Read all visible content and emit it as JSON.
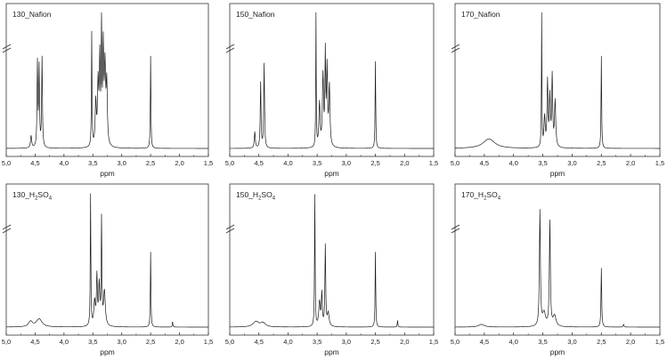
{
  "chart_data": [
    {
      "type": "line",
      "title": "130_Nafion",
      "title_sub": "",
      "title_tail": "",
      "xlabel": "ppm",
      "ylabel": "",
      "xlim": [
        5.0,
        1.5
      ],
      "x_reversed": true,
      "x_ticks": [
        "5,0",
        "4,5",
        "4,0",
        "3,5",
        "3,0",
        "2,5",
        "2,0",
        "1,5"
      ],
      "axis_break": true,
      "grid": false,
      "legend": "none",
      "series": [
        {
          "peaks": [
            {
              "ppm": 4.57,
              "h": 0.09,
              "w": 0.012
            },
            {
              "ppm": 4.46,
              "h": 0.62,
              "w": 0.008
            },
            {
              "ppm": 4.43,
              "h": 0.58,
              "w": 0.008
            },
            {
              "ppm": 4.38,
              "h": 0.66,
              "w": 0.008
            },
            {
              "ppm": 3.52,
              "h": 0.84,
              "w": 0.006
            },
            {
              "ppm": 3.45,
              "h": 0.32,
              "w": 0.012
            },
            {
              "ppm": 3.41,
              "h": 0.45,
              "w": 0.012
            },
            {
              "ppm": 3.38,
              "h": 0.62,
              "w": 0.01
            },
            {
              "ppm": 3.35,
              "h": 1.0,
              "w": 0.006
            },
            {
              "ppm": 3.32,
              "h": 0.7,
              "w": 0.01
            },
            {
              "ppm": 3.29,
              "h": 0.55,
              "w": 0.012
            },
            {
              "ppm": 3.26,
              "h": 0.45,
              "w": 0.012
            },
            {
              "ppm": 2.5,
              "h": 0.68,
              "w": 0.006
            }
          ]
        }
      ]
    },
    {
      "type": "line",
      "title": "150_Nafion",
      "title_sub": "",
      "title_tail": "",
      "xlabel": "ppm",
      "ylabel": "",
      "xlim": [
        5.0,
        1.5
      ],
      "x_reversed": true,
      "x_ticks": [
        "5,0",
        "4,5",
        "4,0",
        "3,5",
        "3,0",
        "2,5",
        "2,0",
        "1,5"
      ],
      "axis_break": true,
      "grid": false,
      "legend": "none",
      "series": [
        {
          "peaks": [
            {
              "ppm": 4.57,
              "h": 0.12,
              "w": 0.01
            },
            {
              "ppm": 4.47,
              "h": 0.48,
              "w": 0.008
            },
            {
              "ppm": 4.41,
              "h": 0.62,
              "w": 0.008
            },
            {
              "ppm": 3.52,
              "h": 0.98,
              "w": 0.005
            },
            {
              "ppm": 3.46,
              "h": 0.32,
              "w": 0.012
            },
            {
              "ppm": 3.4,
              "h": 0.52,
              "w": 0.012
            },
            {
              "ppm": 3.36,
              "h": 0.66,
              "w": 0.008
            },
            {
              "ppm": 3.33,
              "h": 0.56,
              "w": 0.01
            },
            {
              "ppm": 3.29,
              "h": 0.44,
              "w": 0.012
            },
            {
              "ppm": 2.5,
              "h": 0.64,
              "w": 0.006
            }
          ]
        }
      ]
    },
    {
      "type": "line",
      "title": "170_Nafion",
      "title_sub": "",
      "title_tail": "",
      "xlabel": "ppm",
      "ylabel": "",
      "xlim": [
        5.0,
        1.5
      ],
      "x_reversed": true,
      "x_ticks": [
        "5,0",
        "4,5",
        "4,0",
        "3,5",
        "3,0",
        "2,5",
        "2,0",
        "1,5"
      ],
      "axis_break": true,
      "grid": false,
      "legend": "none",
      "series": [
        {
          "peaks": [
            {
              "ppm": 4.42,
              "h": 0.07,
              "w": 0.12
            },
            {
              "ppm": 3.52,
              "h": 0.98,
              "w": 0.005
            },
            {
              "ppm": 3.47,
              "h": 0.22,
              "w": 0.012
            },
            {
              "ppm": 3.42,
              "h": 0.48,
              "w": 0.01
            },
            {
              "ppm": 3.38,
              "h": 0.36,
              "w": 0.01
            },
            {
              "ppm": 3.34,
              "h": 0.52,
              "w": 0.01
            },
            {
              "ppm": 3.29,
              "h": 0.34,
              "w": 0.012
            },
            {
              "ppm": 2.5,
              "h": 0.68,
              "w": 0.006
            }
          ]
        }
      ]
    },
    {
      "type": "line",
      "title": "130_H",
      "title_sub": "2",
      "title_tail": "SO4",
      "xlabel": "ppm",
      "ylabel": "",
      "xlim": [
        5.0,
        1.5
      ],
      "x_reversed": true,
      "x_ticks": [
        "5,0",
        "4,5",
        "4,0",
        "3,5",
        "3,0",
        "2,5",
        "2,0",
        "1,5"
      ],
      "axis_break": true,
      "grid": false,
      "legend": "none",
      "series": [
        {
          "peaks": [
            {
              "ppm": 4.58,
              "h": 0.04,
              "w": 0.04
            },
            {
              "ppm": 4.43,
              "h": 0.06,
              "w": 0.06
            },
            {
              "ppm": 3.54,
              "h": 0.98,
              "w": 0.006
            },
            {
              "ppm": 3.47,
              "h": 0.18,
              "w": 0.015
            },
            {
              "ppm": 3.43,
              "h": 0.36,
              "w": 0.01
            },
            {
              "ppm": 3.39,
              "h": 0.3,
              "w": 0.012
            },
            {
              "ppm": 3.35,
              "h": 0.78,
              "w": 0.007
            },
            {
              "ppm": 3.3,
              "h": 0.26,
              "w": 0.018
            },
            {
              "ppm": 2.5,
              "h": 0.56,
              "w": 0.006
            },
            {
              "ppm": 2.12,
              "h": 0.04,
              "w": 0.006
            }
          ]
        }
      ]
    },
    {
      "type": "line",
      "title": "150_H",
      "title_sub": "2",
      "title_tail": "SO4",
      "xlabel": "ppm",
      "ylabel": "",
      "xlim": [
        5.0,
        1.5
      ],
      "x_reversed": true,
      "x_ticks": [
        "5,0",
        "4,5",
        "4,0",
        "3,5",
        "3,0",
        "2,5",
        "2,0",
        "1,5"
      ],
      "axis_break": true,
      "grid": false,
      "legend": "none",
      "series": [
        {
          "peaks": [
            {
              "ppm": 4.55,
              "h": 0.04,
              "w": 0.06
            },
            {
              "ppm": 4.43,
              "h": 0.03,
              "w": 0.05
            },
            {
              "ppm": 3.54,
              "h": 0.98,
              "w": 0.006
            },
            {
              "ppm": 3.46,
              "h": 0.18,
              "w": 0.015
            },
            {
              "ppm": 3.42,
              "h": 0.24,
              "w": 0.01
            },
            {
              "ppm": 3.36,
              "h": 0.6,
              "w": 0.008
            },
            {
              "ppm": 3.31,
              "h": 0.1,
              "w": 0.018
            },
            {
              "ppm": 2.5,
              "h": 0.56,
              "w": 0.006
            },
            {
              "ppm": 2.12,
              "h": 0.05,
              "w": 0.006
            }
          ]
        }
      ]
    },
    {
      "type": "line",
      "title": "170_H",
      "title_sub": "2",
      "title_tail": "SO4",
      "xlabel": "ppm",
      "ylabel": "",
      "xlim": [
        5.0,
        1.5
      ],
      "x_reversed": true,
      "x_ticks": [
        "5,0",
        "4,5",
        "4,0",
        "3,5",
        "3,0",
        "2,5",
        "2,0",
        "1,5"
      ],
      "axis_break": true,
      "grid": false,
      "legend": "none",
      "series": [
        {
          "peaks": [
            {
              "ppm": 4.55,
              "h": 0.02,
              "w": 0.06
            },
            {
              "ppm": 3.55,
              "h": 0.86,
              "w": 0.01
            },
            {
              "ppm": 3.48,
              "h": 0.1,
              "w": 0.03
            },
            {
              "ppm": 3.38,
              "h": 0.78,
              "w": 0.01
            },
            {
              "ppm": 3.3,
              "h": 0.08,
              "w": 0.03
            },
            {
              "ppm": 2.5,
              "h": 0.44,
              "w": 0.007
            },
            {
              "ppm": 2.12,
              "h": 0.02,
              "w": 0.008
            }
          ]
        }
      ]
    }
  ]
}
